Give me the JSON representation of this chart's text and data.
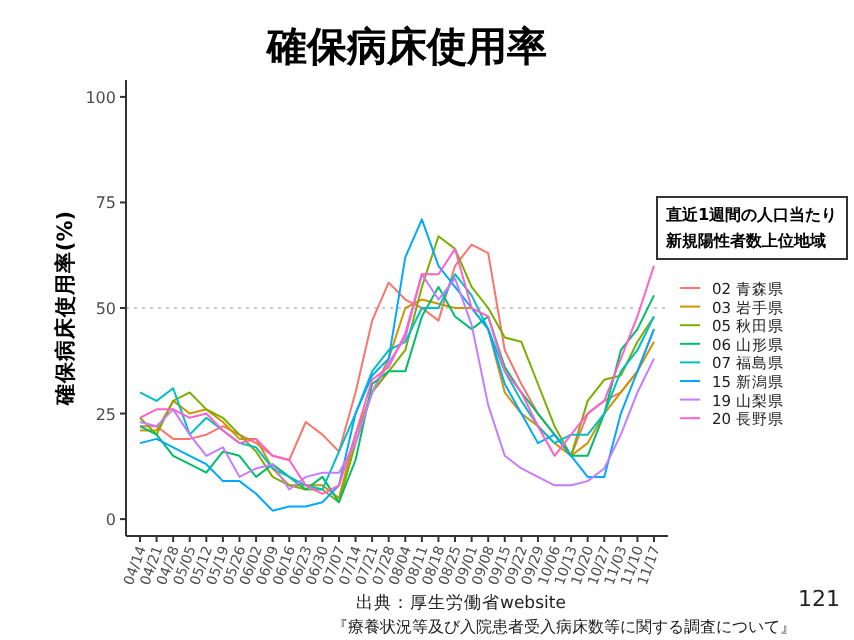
{
  "chart_data": {
    "type": "line",
    "title": "確保病床使用率",
    "ylabel": "確保病床使用率(%)",
    "legend_title": "直近1週間の人口当たり新規陽性者数上位地域",
    "categories": [
      "04/14",
      "04/21",
      "04/28",
      "05/05",
      "05/12",
      "05/19",
      "05/26",
      "06/02",
      "06/09",
      "06/16",
      "06/23",
      "06/30",
      "07/07",
      "07/14",
      "07/21",
      "07/28",
      "08/04",
      "08/11",
      "08/18",
      "08/25",
      "09/01",
      "09/08",
      "09/15",
      "09/22",
      "09/29",
      "10/06",
      "10/13",
      "10/20",
      "10/27",
      "11/03",
      "11/10",
      "11/17"
    ],
    "ylim": [
      -4,
      104
    ],
    "yticks": [
      0,
      25,
      50,
      75,
      100
    ],
    "grid": false,
    "legend": "right",
    "marker": "none",
    "line_style": "solid",
    "ref_lines": [
      {
        "axis": "y",
        "value": 50,
        "color": "#cccccc",
        "line_style": "dotted"
      }
    ],
    "series": [
      {
        "name": "02 青森県",
        "color": "#F8766D",
        "values": [
          22,
          22,
          19,
          19,
          20,
          22,
          20,
          18,
          15,
          14,
          23,
          20,
          16,
          30,
          47,
          56,
          52,
          50,
          47,
          60,
          65,
          63,
          40,
          32,
          25,
          20,
          15,
          25,
          28,
          30,
          35,
          45
        ]
      },
      {
        "name": "03 岩手県",
        "color": "#CD9600",
        "values": [
          21,
          21,
          28,
          25,
          26,
          23,
          19,
          19,
          12,
          8,
          8,
          8,
          5,
          20,
          30,
          38,
          50,
          52,
          51,
          50,
          50,
          45,
          30,
          25,
          22,
          18,
          15,
          18,
          25,
          30,
          35,
          42
        ]
      },
      {
        "name": "05 秋田県",
        "color": "#7CAE00",
        "values": [
          24,
          20,
          28,
          30,
          26,
          24,
          20,
          16,
          10,
          8,
          7,
          7,
          4,
          18,
          30,
          35,
          40,
          55,
          67,
          64,
          55,
          50,
          43,
          42,
          32,
          22,
          15,
          28,
          33,
          34,
          42,
          48
        ]
      },
      {
        "name": "06 山形県",
        "color": "#00BE67",
        "values": [
          22,
          20,
          15,
          13,
          11,
          16,
          15,
          10,
          13,
          10,
          7,
          10,
          4,
          14,
          32,
          35,
          35,
          48,
          55,
          48,
          45,
          48,
          36,
          30,
          25,
          20,
          15,
          15,
          25,
          40,
          45,
          53
        ]
      },
      {
        "name": "07 福島県",
        "color": "#00BFC4",
        "values": [
          30,
          28,
          31,
          20,
          24,
          21,
          18,
          17,
          12,
          10,
          8,
          7,
          16,
          25,
          35,
          40,
          42,
          50,
          50,
          58,
          53,
          45,
          35,
          28,
          22,
          18,
          20,
          20,
          25,
          35,
          40,
          48
        ]
      },
      {
        "name": "15 新潟県",
        "color": "#00A9FF",
        "values": [
          18,
          19,
          17,
          15,
          13,
          9,
          9,
          6,
          2,
          3,
          3,
          4,
          8,
          25,
          34,
          38,
          62,
          71,
          60,
          55,
          50,
          45,
          32,
          25,
          18,
          20,
          15,
          10,
          10,
          25,
          35,
          45
        ]
      },
      {
        "name": "19 山梨県",
        "color": "#C77CFF",
        "values": [
          23,
          22,
          26,
          20,
          15,
          17,
          10,
          12,
          13,
          7,
          10,
          11,
          11,
          18,
          30,
          37,
          43,
          58,
          52,
          57,
          46,
          27,
          15,
          12,
          10,
          8,
          8,
          9,
          12,
          20,
          30,
          38
        ]
      },
      {
        "name": "20 長野県",
        "color": "#FF61CC",
        "values": [
          24,
          26,
          26,
          24,
          25,
          21,
          18,
          19,
          15,
          14,
          8,
          6,
          8,
          20,
          33,
          36,
          44,
          58,
          58,
          64,
          50,
          48,
          35,
          30,
          22,
          15,
          20,
          25,
          28,
          38,
          48,
          60
        ]
      }
    ],
    "annotations": [
      "出典：厚生労働省website",
      "『療養状況等及び入院患者受入病床数等に関する調査について』",
      "121"
    ]
  }
}
